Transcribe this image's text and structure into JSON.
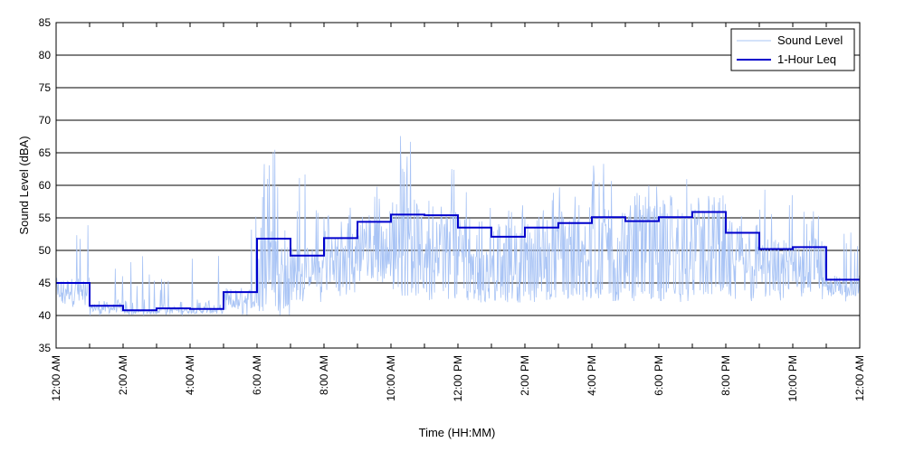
{
  "chart_data": {
    "type": "line",
    "title": "",
    "xlabel": "Time (HH:MM)",
    "ylabel": "Sound Level (dBA)",
    "ylim": [
      35,
      85
    ],
    "yticks": [
      35,
      40,
      45,
      50,
      55,
      60,
      65,
      70,
      75,
      80,
      85
    ],
    "xlim_hours": [
      0,
      24
    ],
    "xticks": [
      {
        "hour": 0,
        "label": "12:00 AM"
      },
      {
        "hour": 2,
        "label": "2:00 AM"
      },
      {
        "hour": 4,
        "label": "4:00 AM"
      },
      {
        "hour": 6,
        "label": "6:00 AM"
      },
      {
        "hour": 8,
        "label": "8:00 AM"
      },
      {
        "hour": 10,
        "label": "10:00 AM"
      },
      {
        "hour": 12,
        "label": "12:00 PM"
      },
      {
        "hour": 14,
        "label": "2:00 PM"
      },
      {
        "hour": 16,
        "label": "4:00 PM"
      },
      {
        "hour": 18,
        "label": "6:00 PM"
      },
      {
        "hour": 20,
        "label": "8:00 PM"
      },
      {
        "hour": 22,
        "label": "10:00 PM"
      },
      {
        "hour": 24,
        "label": "12:00 AM"
      }
    ],
    "grid": "horizontal",
    "legend_position": "top-right",
    "series": [
      {
        "name": "Sound Level",
        "style": "thin line",
        "color": "#a9c4f5",
        "approx_range_by_hour": [
          {
            "hour": 0,
            "min": 41,
            "max": 56
          },
          {
            "hour": 1,
            "min": 40,
            "max": 49
          },
          {
            "hour": 2,
            "min": 40,
            "max": 50
          },
          {
            "hour": 3,
            "min": 40,
            "max": 46
          },
          {
            "hour": 4,
            "min": 40,
            "max": 51
          },
          {
            "hour": 5,
            "min": 40,
            "max": 57
          },
          {
            "hour": 6,
            "min": 40,
            "max": 66
          },
          {
            "hour": 7,
            "min": 42,
            "max": 62
          },
          {
            "hour": 8,
            "min": 43,
            "max": 57
          },
          {
            "hour": 9,
            "min": 45,
            "max": 60
          },
          {
            "hour": 10,
            "min": 43,
            "max": 68
          },
          {
            "hour": 11,
            "min": 42,
            "max": 64
          },
          {
            "hour": 12,
            "min": 42,
            "max": 59
          },
          {
            "hour": 13,
            "min": 42,
            "max": 59
          },
          {
            "hour": 14,
            "min": 42,
            "max": 60
          },
          {
            "hour": 15,
            "min": 42,
            "max": 60
          },
          {
            "hour": 16,
            "min": 42,
            "max": 64
          },
          {
            "hour": 17,
            "min": 42,
            "max": 60
          },
          {
            "hour": 18,
            "min": 42,
            "max": 61
          },
          {
            "hour": 19,
            "min": 43,
            "max": 59
          },
          {
            "hour": 20,
            "min": 42,
            "max": 58
          },
          {
            "hour": 21,
            "min": 42,
            "max": 62
          },
          {
            "hour": 22,
            "min": 42,
            "max": 57
          },
          {
            "hour": 23,
            "min": 42,
            "max": 53
          }
        ]
      },
      {
        "name": "1-Hour Leq",
        "style": "step",
        "color": "#0000cc",
        "hours": [
          0,
          1,
          2,
          3,
          4,
          5,
          6,
          7,
          8,
          9,
          10,
          11,
          12,
          13,
          14,
          15,
          16,
          17,
          18,
          19,
          20,
          21,
          22,
          23
        ],
        "values": [
          45.0,
          41.5,
          40.8,
          41.1,
          41.0,
          43.6,
          51.8,
          49.2,
          51.9,
          54.4,
          55.5,
          55.4,
          53.5,
          52.1,
          53.5,
          54.2,
          55.1,
          54.5,
          55.1,
          55.9,
          52.7,
          50.2,
          50.5,
          45.5
        ]
      }
    ]
  }
}
